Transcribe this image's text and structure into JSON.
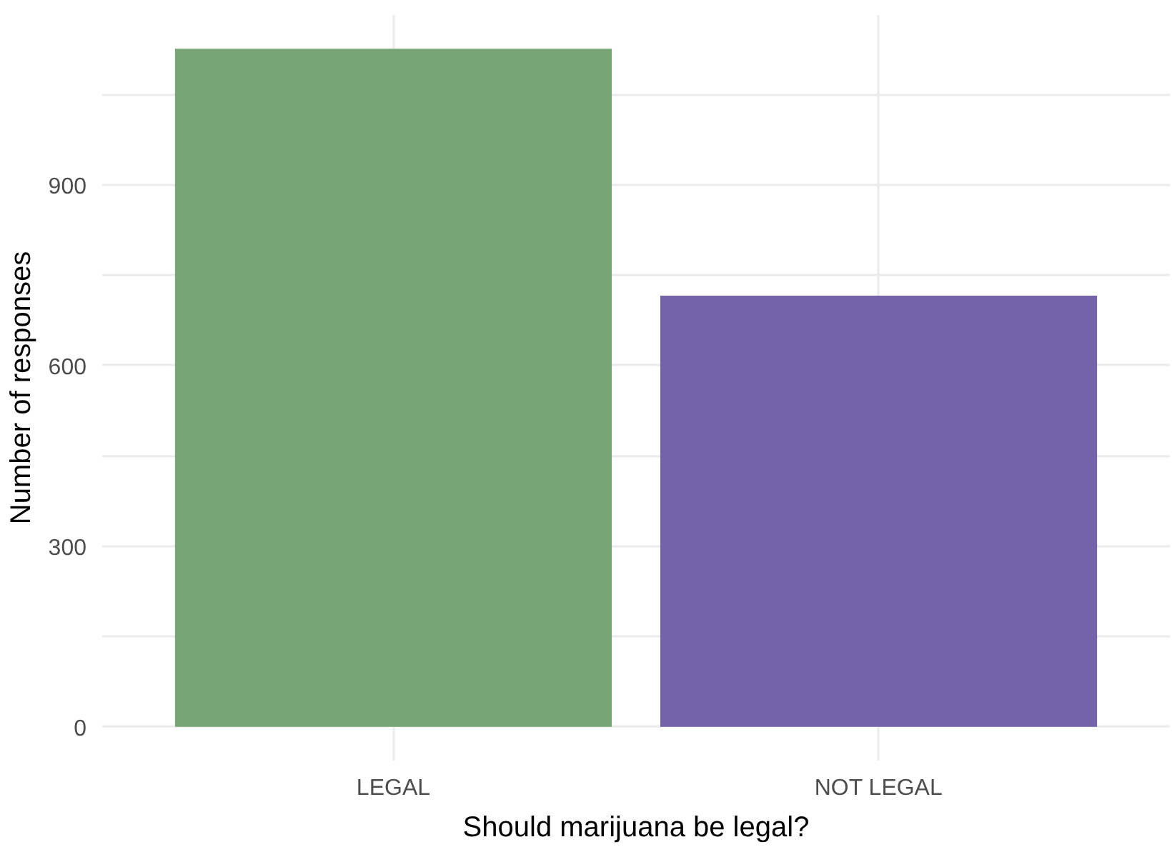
{
  "chart_data": {
    "type": "bar",
    "xlabel": "Should marijuana be legal?",
    "ylabel": "Number of responses",
    "categories": [
      "LEGAL",
      "NOT LEGAL"
    ],
    "values": [
      1126,
      716
    ],
    "colors": [
      "#77a576",
      "#7563aa"
    ],
    "ylim": [
      -56,
      1182
    ],
    "yticks": [
      0,
      {
        "value": 150,
        "label": null
      },
      300,
      {
        "value": 450,
        "label": null
      },
      600,
      {
        "value": 750,
        "label": null
      },
      900,
      {
        "value": 1050,
        "label": null
      }
    ],
    "grid": true
  }
}
